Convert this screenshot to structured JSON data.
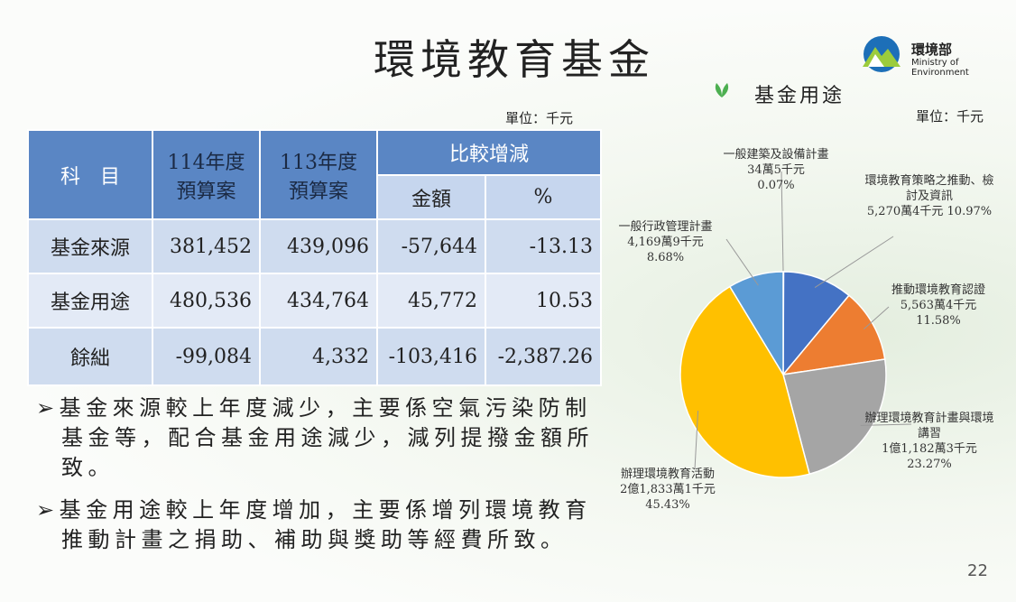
{
  "header": {
    "title": "環境教育基金",
    "logo_name": "環境部",
    "logo_english": "Ministry of Environment"
  },
  "table": {
    "unit": "單位：千元",
    "head": {
      "subject": "科　目",
      "col1_year": "114年度",
      "col1_sub": "預算案",
      "col2_year": "113年度",
      "col2_sub": "預算案",
      "compare": "比較增減",
      "amount": "金額",
      "percent": "%"
    },
    "rows": [
      [
        "基金來源",
        "381,452",
        "439,096",
        "-57,644",
        "-13.13"
      ],
      [
        "基金用途",
        "480,536",
        "434,764",
        "45,772",
        "10.53"
      ],
      [
        "餘絀",
        "-99,084",
        "4,332",
        "-103,416",
        "-2,387.26"
      ]
    ]
  },
  "bullets": [
    "基金來源較上年度減少，主要係空氣污染防制基金等，配合基金用途減少，減列提撥金額所致。",
    "基金用途較上年度增加，主要係增列環境教育推動計畫之捐助、補助與獎助等經費所致。"
  ],
  "chart_data": {
    "type": "pie",
    "title": "基金用途",
    "unit": "單位：千元",
    "categories": [
      "一般建築及設備計畫",
      "環境教育策略之推動、檢討及資訊",
      "推動環境教育認證",
      "辦理環境教育計畫與環境講習",
      "辦理環境教育活動",
      "一般行政管理計畫"
    ],
    "amounts": [
      "34萬5千元",
      "5,270萬4千元",
      "5,563萬4千元",
      "1億1,182萬3千元",
      "2億1,833萬1千元",
      "4,169萬9千元"
    ],
    "values": [
      0.07,
      10.97,
      11.58,
      23.27,
      45.43,
      8.68
    ],
    "value_labels": [
      "0.07%",
      "10.97%",
      "11.58%",
      "23.27%",
      "45.43%",
      "8.68%"
    ],
    "colors": [
      "#7f9fd0",
      "#4472c4",
      "#ed7d31",
      "#a5a5a5",
      "#ffc000",
      "#5b9bd5"
    ]
  },
  "page_number": "22"
}
